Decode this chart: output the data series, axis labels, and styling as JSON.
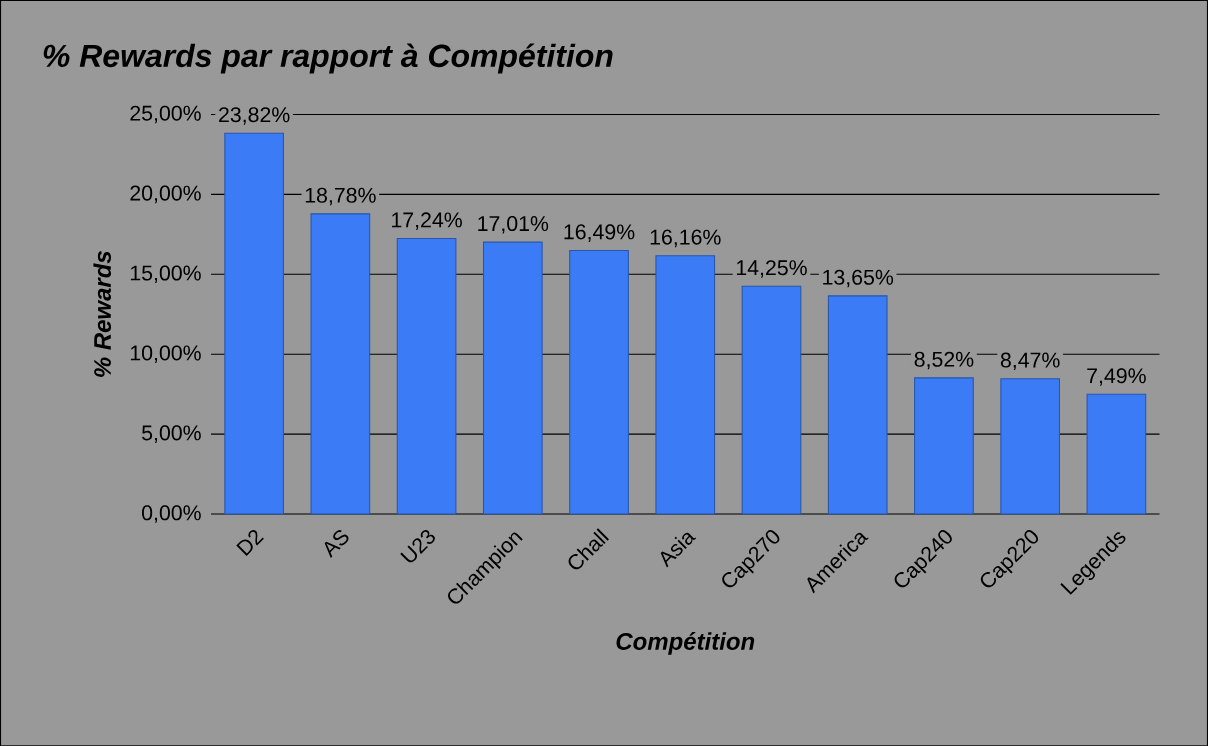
{
  "chart_data": {
    "type": "bar",
    "title": "% Rewards par rapport à Compétition",
    "xlabel": "Compétition",
    "ylabel": "% Rewards",
    "categories": [
      "D2",
      "AS",
      "U23",
      "Champion",
      "Chall",
      "Asia",
      "Cap270",
      "America",
      "Cap240",
      "Cap220",
      "Legends"
    ],
    "values": [
      23.82,
      18.78,
      17.24,
      17.01,
      16.49,
      16.16,
      14.25,
      13.65,
      8.52,
      8.47,
      7.49
    ],
    "value_labels": [
      "23,82%",
      "18,78%",
      "17,24%",
      "17,01%",
      "16,49%",
      "16,16%",
      "14,25%",
      "13,65%",
      "8,52%",
      "8,47%",
      "7,49%"
    ],
    "color": "#3b7bf5",
    "ylim": [
      0,
      25
    ],
    "yticks": [
      {
        "value": 0,
        "label": "0,00%"
      },
      {
        "value": 5,
        "label": "5,00%"
      },
      {
        "value": 10,
        "label": "10,00%"
      },
      {
        "value": 15,
        "label": "15,00%"
      },
      {
        "value": 20,
        "label": "20,00%"
      },
      {
        "value": 25,
        "label": "25,00%"
      }
    ],
    "grid": "y"
  }
}
